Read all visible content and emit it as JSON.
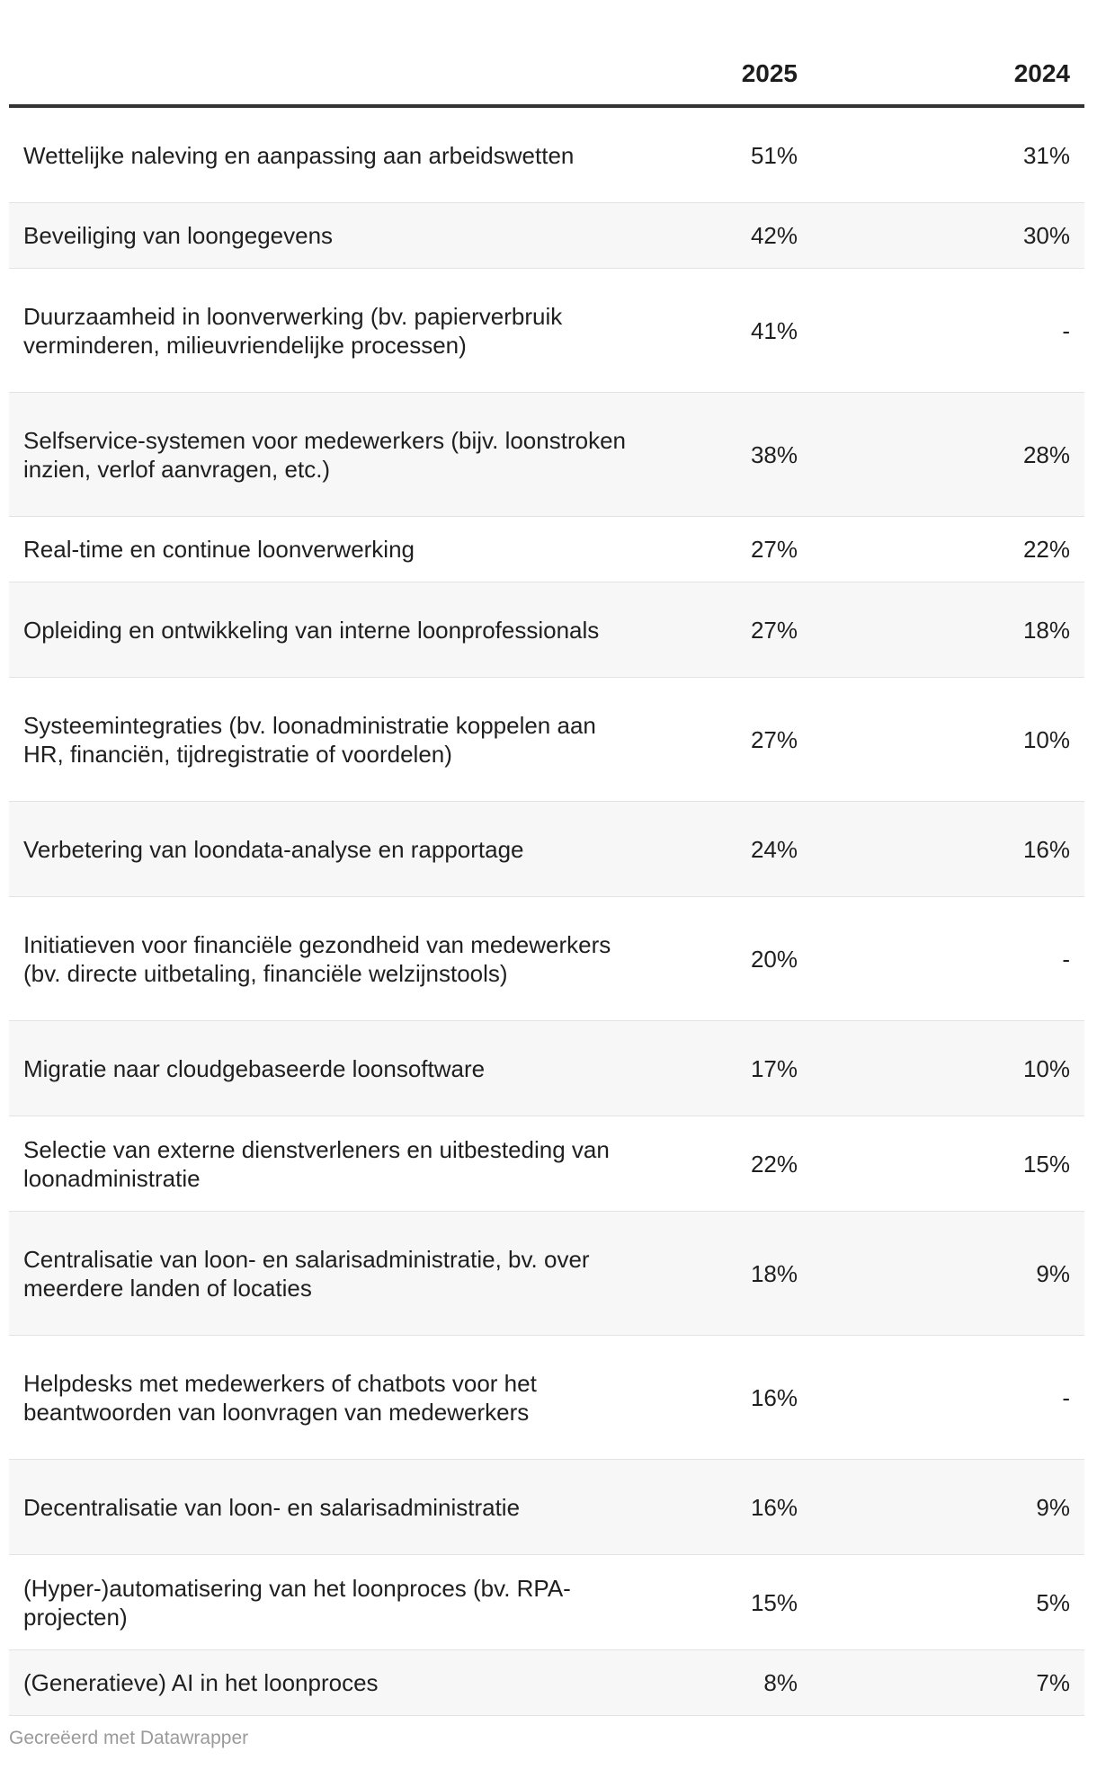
{
  "chart_data": {
    "type": "table",
    "columns": [
      "",
      "2025",
      "2024"
    ],
    "rows": [
      {
        "label": "Wettelijke naleving en aanpassing aan arbeidswetten",
        "v2025": "51%",
        "v2024": "31%"
      },
      {
        "label": "Beveiliging van loongegevens",
        "v2025": "42%",
        "v2024": "30%"
      },
      {
        "label": "Duurzaamheid in loonverwerking (bv. papierverbruik verminderen, milieuvriendelijke processen)",
        "v2025": "41%",
        "v2024": "-"
      },
      {
        "label": "Selfservice-systemen voor medewerkers (bijv. loonstroken inzien, verlof aanvragen, etc.)",
        "v2025": "38%",
        "v2024": "28%"
      },
      {
        "label": "Real-time en continue loonverwerking",
        "v2025": "27%",
        "v2024": "22%"
      },
      {
        "label": "Opleiding en ontwikkeling van interne loonprofessionals",
        "v2025": "27%",
        "v2024": "18%"
      },
      {
        "label": "Systeemintegraties (bv. loonadministratie koppelen aan HR, financiën, tijdregistratie of voordelen)",
        "v2025": "27%",
        "v2024": "10%"
      },
      {
        "label": "Verbetering van loondata-analyse en rapportage",
        "v2025": "24%",
        "v2024": "16%"
      },
      {
        "label": "Initiatieven voor financiële gezondheid van medewerkers (bv. directe uitbetaling, financiële welzijnstools)",
        "v2025": "20%",
        "v2024": "-"
      },
      {
        "label": "Migratie naar cloudgebaseerde loonsoftware",
        "v2025": "17%",
        "v2024": "10%"
      },
      {
        "label": "Selectie van externe dienstverleners en uitbesteding van loonadministratie",
        "v2025": "22%",
        "v2024": "15%"
      },
      {
        "label": "Centralisatie van loon- en salarisadministratie, bv. over meerdere landen of locaties",
        "v2025": "18%",
        "v2024": "9%"
      },
      {
        "label": "Helpdesks met medewerkers of chatbots voor het beantwoorden van loonvragen van medewerkers",
        "v2025": "16%",
        "v2024": "-"
      },
      {
        "label": "Decentralisatie van loon- en salarisadministratie",
        "v2025": "16%",
        "v2024": "9%"
      },
      {
        "label": "(Hyper-)automatisering van het loonproces (bv. RPA-projecten)",
        "v2025": "15%",
        "v2024": "5%"
      },
      {
        "label": "(Generatieve) AI in het loonproces",
        "v2025": "8%",
        "v2024": "7%"
      }
    ]
  },
  "footer": "Gecreëerd met Datawrapper"
}
